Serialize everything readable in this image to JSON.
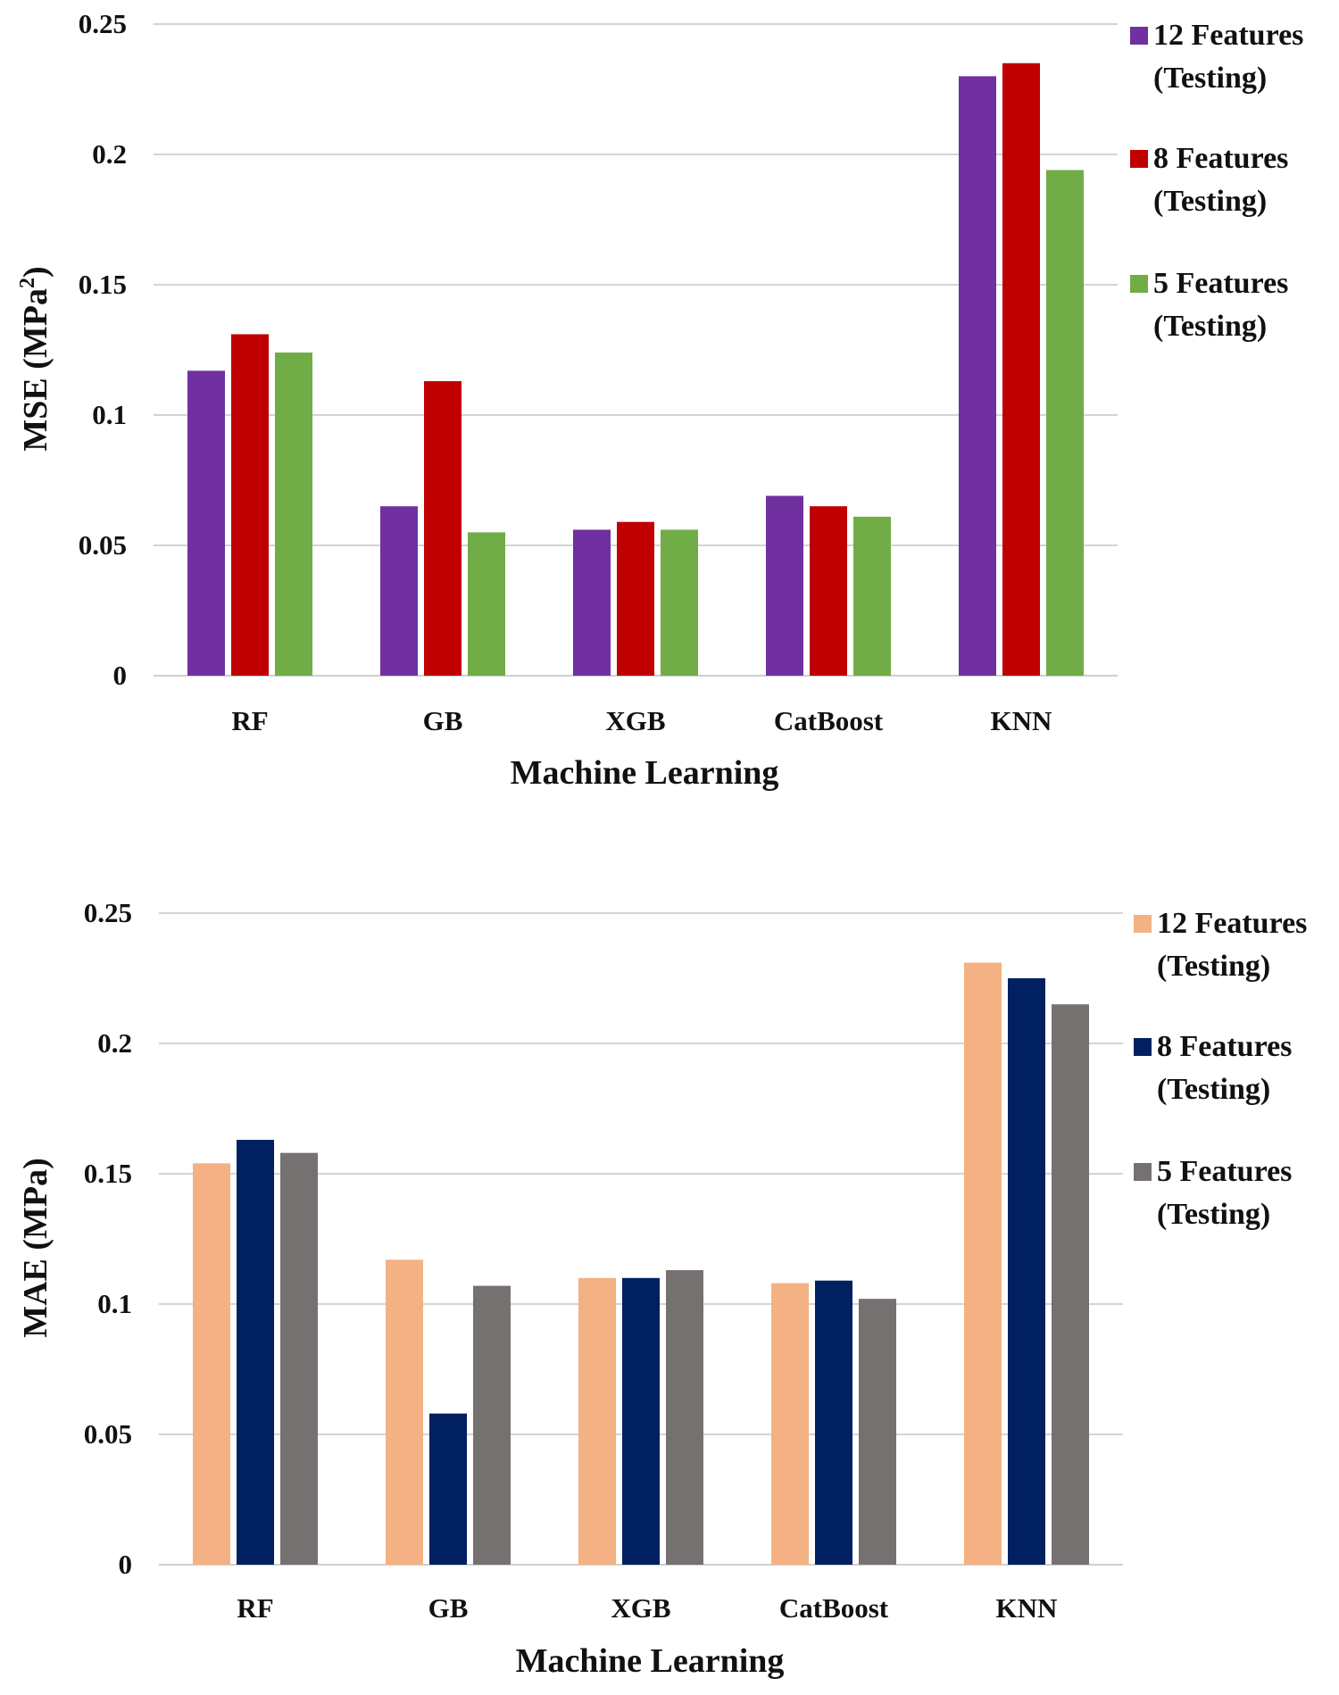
{
  "chart_data": [
    {
      "type": "bar",
      "title": "",
      "xlabel": "Machine Learning",
      "ylabel": "MSE (MPa",
      "ylabel_sup": "2",
      "ylabel_close": ")",
      "ylim": [
        0,
        0.25
      ],
      "yticks": [
        "0",
        "0.05",
        "0.1",
        "0.15",
        "0.2",
        "0.25"
      ],
      "grid": true,
      "legend_position": "right",
      "categories": [
        "RF",
        "GB",
        "XGB",
        "CatBoost",
        "KNN"
      ],
      "series": [
        {
          "name": "12 Features (Testing)",
          "label_line1": "12 Features",
          "label_line2": "(Testing)",
          "color": "#7030A0",
          "values": [
            0.117,
            0.065,
            0.056,
            0.069,
            0.23
          ]
        },
        {
          "name": "8 Features (Testing)",
          "label_line1": "8 Features",
          "label_line2": "(Testing)",
          "color": "#C00000",
          "values": [
            0.131,
            0.113,
            0.059,
            0.065,
            0.235
          ]
        },
        {
          "name": "5 Features (Testing)",
          "label_line1": "5 Features",
          "label_line2": "(Testing)",
          "color": "#70AD47",
          "values": [
            0.124,
            0.055,
            0.056,
            0.061,
            0.194
          ]
        }
      ]
    },
    {
      "type": "bar",
      "title": "",
      "xlabel": "Machine Learning",
      "ylabel": "MAE (MPa)",
      "ylabel_sup": "",
      "ylabel_close": "",
      "ylim": [
        0,
        0.25
      ],
      "yticks": [
        "0",
        "0.05",
        "0.1",
        "0.15",
        "0.2",
        "0.25"
      ],
      "grid": true,
      "legend_position": "right",
      "categories": [
        "RF",
        "GB",
        "XGB",
        "CatBoost",
        "KNN"
      ],
      "series": [
        {
          "name": "12 Features (Testing)",
          "label_line1": "12 Features",
          "label_line2": "(Testing)",
          "color": "#F4B183",
          "values": [
            0.154,
            0.117,
            0.11,
            0.108,
            0.231
          ]
        },
        {
          "name": "8 Features (Testing)",
          "label_line1": "8 Features",
          "label_line2": "(Testing)",
          "color": "#002060",
          "values": [
            0.163,
            0.058,
            0.11,
            0.109,
            0.225
          ]
        },
        {
          "name": "5 Features (Testing)",
          "label_line1": "5 Features",
          "label_line2": "(Testing)",
          "color": "#767171",
          "values": [
            0.158,
            0.107,
            0.113,
            0.102,
            0.215
          ]
        }
      ]
    }
  ]
}
